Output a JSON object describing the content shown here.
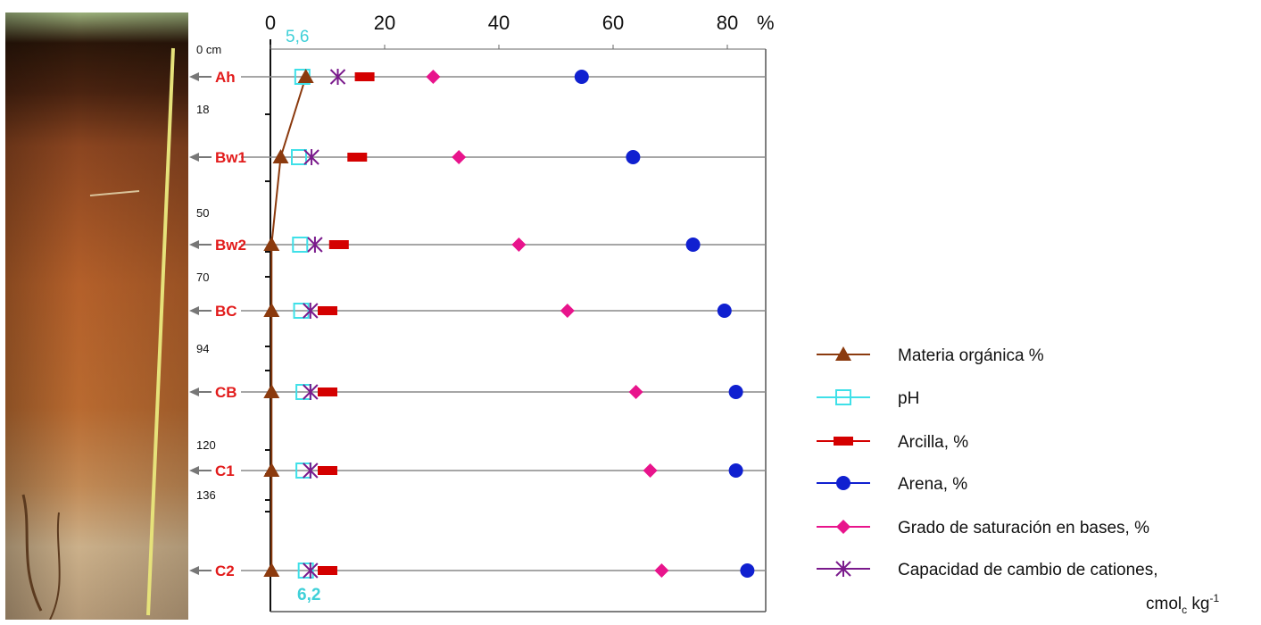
{
  "photo": {
    "alt": "soil-profile-photo"
  },
  "x_axis": {
    "ticks": [
      "0",
      "20",
      "40",
      "60",
      "80"
    ],
    "unit": "%"
  },
  "depth_labels": [
    "0 cm",
    "18",
    "50",
    "70",
    "94",
    "120",
    "136"
  ],
  "ph_labels": {
    "top": "5,6",
    "bottom": "6,2"
  },
  "colors": {
    "materia": "#8b3a0e",
    "ph": "#3fe0e8",
    "arcilla": "#d40000",
    "arena": "#1020d0",
    "saturacion": "#e8148c",
    "cic": "#7a1a8c",
    "horizon_line": "#888888"
  },
  "legend": [
    {
      "key": "materia",
      "label": "Materia orgánica %"
    },
    {
      "key": "ph",
      "label": "pH"
    },
    {
      "key": "arcilla",
      "label": "Arcilla, %"
    },
    {
      "key": "arena",
      "label": "Arena, %"
    },
    {
      "key": "saturacion",
      "label": "Grado de saturación en bases, %"
    },
    {
      "key": "cic",
      "label": "Capacidad de cambio de cationes,",
      "unit_main": "cmol",
      "unit_sub": "c",
      "unit_tail": " kg",
      "unit_sup": "-1"
    }
  ],
  "chart_data": {
    "type": "scatter",
    "xlim": [
      0,
      88
    ],
    "xlabel": "%",
    "horizons": [
      "Ah",
      "Bw1",
      "Bw2",
      "BC",
      "CB",
      "C1",
      "C2"
    ],
    "series": [
      {
        "name": "Materia orgánica %",
        "key": "materia",
        "values": [
          6.2,
          1.8,
          0.2,
          0.2,
          0.2,
          0.2,
          0.2
        ]
      },
      {
        "name": "pH",
        "key": "ph",
        "values": [
          5.6,
          5.0,
          5.2,
          5.4,
          5.8,
          5.8,
          6.2
        ]
      },
      {
        "name": "Arcilla, %",
        "key": "arcilla",
        "values": [
          16.5,
          15.2,
          12.0,
          10.0,
          10.0,
          10.0,
          10.0
        ]
      },
      {
        "name": "Arena, %",
        "key": "arena",
        "values": [
          54.5,
          63.5,
          74,
          79.5,
          81.5,
          81.5,
          83.5
        ]
      },
      {
        "name": "Grado de saturación en bases, %",
        "key": "saturacion",
        "values": [
          28.5,
          33,
          43.5,
          52,
          64,
          66.5,
          68.5
        ]
      },
      {
        "name": "Capacidad de cambio de cationes, cmolc kg-1",
        "key": "cic",
        "values": [
          11.8,
          7.2,
          7.8,
          7.0,
          7.0,
          7.0,
          7.0
        ]
      }
    ]
  }
}
